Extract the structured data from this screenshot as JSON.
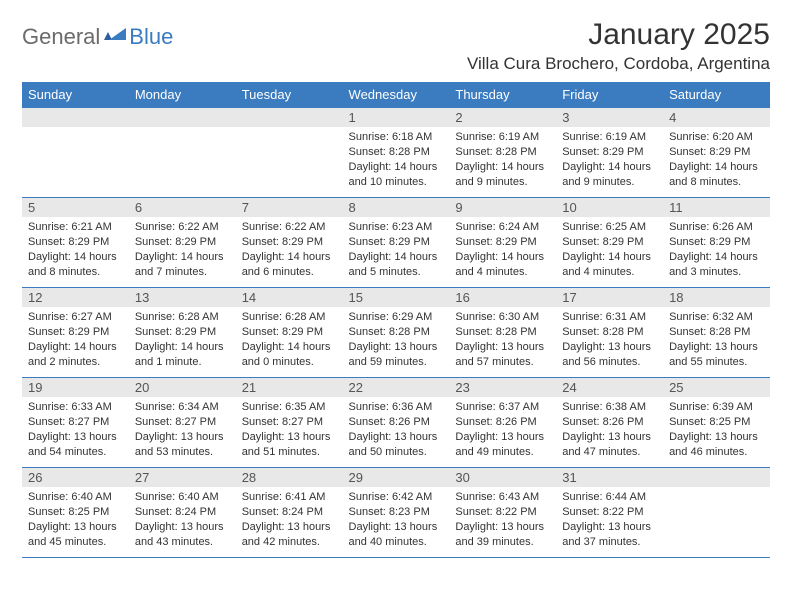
{
  "brand": {
    "part1": "General",
    "part2": "Blue"
  },
  "title": "January 2025",
  "location": "Villa Cura Brochero, Cordoba, Argentina",
  "colors": {
    "header_bg": "#3b7bbf",
    "header_text": "#ffffff",
    "daynum_bg": "#e8e8e8",
    "border": "#3b7bbf",
    "text": "#333333",
    "logo_gray": "#6b6b6b",
    "logo_blue": "#3b7bbf"
  },
  "weekdays": [
    "Sunday",
    "Monday",
    "Tuesday",
    "Wednesday",
    "Thursday",
    "Friday",
    "Saturday"
  ],
  "weeks": [
    [
      null,
      null,
      null,
      {
        "n": "1",
        "sr": "Sunrise: 6:18 AM",
        "ss": "Sunset: 8:28 PM",
        "dl1": "Daylight: 14 hours",
        "dl2": "and 10 minutes."
      },
      {
        "n": "2",
        "sr": "Sunrise: 6:19 AM",
        "ss": "Sunset: 8:28 PM",
        "dl1": "Daylight: 14 hours",
        "dl2": "and 9 minutes."
      },
      {
        "n": "3",
        "sr": "Sunrise: 6:19 AM",
        "ss": "Sunset: 8:29 PM",
        "dl1": "Daylight: 14 hours",
        "dl2": "and 9 minutes."
      },
      {
        "n": "4",
        "sr": "Sunrise: 6:20 AM",
        "ss": "Sunset: 8:29 PM",
        "dl1": "Daylight: 14 hours",
        "dl2": "and 8 minutes."
      }
    ],
    [
      {
        "n": "5",
        "sr": "Sunrise: 6:21 AM",
        "ss": "Sunset: 8:29 PM",
        "dl1": "Daylight: 14 hours",
        "dl2": "and 8 minutes."
      },
      {
        "n": "6",
        "sr": "Sunrise: 6:22 AM",
        "ss": "Sunset: 8:29 PM",
        "dl1": "Daylight: 14 hours",
        "dl2": "and 7 minutes."
      },
      {
        "n": "7",
        "sr": "Sunrise: 6:22 AM",
        "ss": "Sunset: 8:29 PM",
        "dl1": "Daylight: 14 hours",
        "dl2": "and 6 minutes."
      },
      {
        "n": "8",
        "sr": "Sunrise: 6:23 AM",
        "ss": "Sunset: 8:29 PM",
        "dl1": "Daylight: 14 hours",
        "dl2": "and 5 minutes."
      },
      {
        "n": "9",
        "sr": "Sunrise: 6:24 AM",
        "ss": "Sunset: 8:29 PM",
        "dl1": "Daylight: 14 hours",
        "dl2": "and 4 minutes."
      },
      {
        "n": "10",
        "sr": "Sunrise: 6:25 AM",
        "ss": "Sunset: 8:29 PM",
        "dl1": "Daylight: 14 hours",
        "dl2": "and 4 minutes."
      },
      {
        "n": "11",
        "sr": "Sunrise: 6:26 AM",
        "ss": "Sunset: 8:29 PM",
        "dl1": "Daylight: 14 hours",
        "dl2": "and 3 minutes."
      }
    ],
    [
      {
        "n": "12",
        "sr": "Sunrise: 6:27 AM",
        "ss": "Sunset: 8:29 PM",
        "dl1": "Daylight: 14 hours",
        "dl2": "and 2 minutes."
      },
      {
        "n": "13",
        "sr": "Sunrise: 6:28 AM",
        "ss": "Sunset: 8:29 PM",
        "dl1": "Daylight: 14 hours",
        "dl2": "and 1 minute."
      },
      {
        "n": "14",
        "sr": "Sunrise: 6:28 AM",
        "ss": "Sunset: 8:29 PM",
        "dl1": "Daylight: 14 hours",
        "dl2": "and 0 minutes."
      },
      {
        "n": "15",
        "sr": "Sunrise: 6:29 AM",
        "ss": "Sunset: 8:28 PM",
        "dl1": "Daylight: 13 hours",
        "dl2": "and 59 minutes."
      },
      {
        "n": "16",
        "sr": "Sunrise: 6:30 AM",
        "ss": "Sunset: 8:28 PM",
        "dl1": "Daylight: 13 hours",
        "dl2": "and 57 minutes."
      },
      {
        "n": "17",
        "sr": "Sunrise: 6:31 AM",
        "ss": "Sunset: 8:28 PM",
        "dl1": "Daylight: 13 hours",
        "dl2": "and 56 minutes."
      },
      {
        "n": "18",
        "sr": "Sunrise: 6:32 AM",
        "ss": "Sunset: 8:28 PM",
        "dl1": "Daylight: 13 hours",
        "dl2": "and 55 minutes."
      }
    ],
    [
      {
        "n": "19",
        "sr": "Sunrise: 6:33 AM",
        "ss": "Sunset: 8:27 PM",
        "dl1": "Daylight: 13 hours",
        "dl2": "and 54 minutes."
      },
      {
        "n": "20",
        "sr": "Sunrise: 6:34 AM",
        "ss": "Sunset: 8:27 PM",
        "dl1": "Daylight: 13 hours",
        "dl2": "and 53 minutes."
      },
      {
        "n": "21",
        "sr": "Sunrise: 6:35 AM",
        "ss": "Sunset: 8:27 PM",
        "dl1": "Daylight: 13 hours",
        "dl2": "and 51 minutes."
      },
      {
        "n": "22",
        "sr": "Sunrise: 6:36 AM",
        "ss": "Sunset: 8:26 PM",
        "dl1": "Daylight: 13 hours",
        "dl2": "and 50 minutes."
      },
      {
        "n": "23",
        "sr": "Sunrise: 6:37 AM",
        "ss": "Sunset: 8:26 PM",
        "dl1": "Daylight: 13 hours",
        "dl2": "and 49 minutes."
      },
      {
        "n": "24",
        "sr": "Sunrise: 6:38 AM",
        "ss": "Sunset: 8:26 PM",
        "dl1": "Daylight: 13 hours",
        "dl2": "and 47 minutes."
      },
      {
        "n": "25",
        "sr": "Sunrise: 6:39 AM",
        "ss": "Sunset: 8:25 PM",
        "dl1": "Daylight: 13 hours",
        "dl2": "and 46 minutes."
      }
    ],
    [
      {
        "n": "26",
        "sr": "Sunrise: 6:40 AM",
        "ss": "Sunset: 8:25 PM",
        "dl1": "Daylight: 13 hours",
        "dl2": "and 45 minutes."
      },
      {
        "n": "27",
        "sr": "Sunrise: 6:40 AM",
        "ss": "Sunset: 8:24 PM",
        "dl1": "Daylight: 13 hours",
        "dl2": "and 43 minutes."
      },
      {
        "n": "28",
        "sr": "Sunrise: 6:41 AM",
        "ss": "Sunset: 8:24 PM",
        "dl1": "Daylight: 13 hours",
        "dl2": "and 42 minutes."
      },
      {
        "n": "29",
        "sr": "Sunrise: 6:42 AM",
        "ss": "Sunset: 8:23 PM",
        "dl1": "Daylight: 13 hours",
        "dl2": "and 40 minutes."
      },
      {
        "n": "30",
        "sr": "Sunrise: 6:43 AM",
        "ss": "Sunset: 8:22 PM",
        "dl1": "Daylight: 13 hours",
        "dl2": "and 39 minutes."
      },
      {
        "n": "31",
        "sr": "Sunrise: 6:44 AM",
        "ss": "Sunset: 8:22 PM",
        "dl1": "Daylight: 13 hours",
        "dl2": "and 37 minutes."
      },
      null
    ]
  ]
}
